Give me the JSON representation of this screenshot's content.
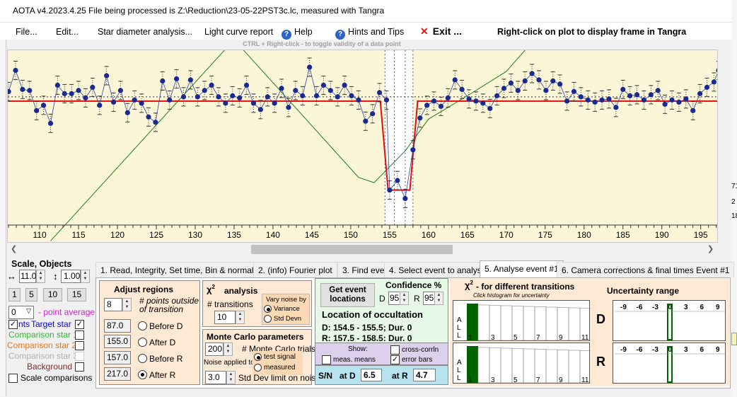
{
  "window": {
    "title": "AOTA v4.2023.4.25   File being processed is Z:\\Reduction\\23-05-22PST3c.lc, measured with Tangra"
  },
  "menu": {
    "file": "File...",
    "edit": "Edit...",
    "star_diameter": "Star diameter analysis...",
    "light_curve": "Light curve report",
    "help": "Help",
    "hints": "Hints and Tips",
    "exit": "Exit ...",
    "right_click_hint": "Right-click on plot to display frame in Tangra"
  },
  "plot": {
    "ctrl_hint": "CTRL + Right-click  -  to toggle validity of a data point"
  },
  "chart_data": {
    "type": "line",
    "x_ticks": [
      "110",
      "115",
      "120",
      "125",
      "130",
      "135",
      "140",
      "145",
      "150",
      "155",
      "160",
      "165",
      "170",
      "175",
      "180",
      "185",
      "190",
      "195"
    ],
    "xlim": [
      105.9,
      197.3
    ],
    "ylim": [
      -0.15,
      1.5
    ],
    "series": [
      {
        "values": [
          [
            106.0,
            1.11
          ],
          [
            106.9,
            1.31
          ],
          [
            107.8,
            1.13
          ],
          [
            108.7,
            1.12
          ],
          [
            109.6,
            0.93
          ],
          [
            110.5,
            0.98
          ],
          [
            111.4,
            0.81
          ],
          [
            112.3,
            1.17
          ],
          [
            113.2,
            1.09
          ],
          [
            114.1,
            1.09
          ],
          [
            115.0,
            1.12
          ],
          [
            115.9,
            1.05
          ],
          [
            116.8,
            1.15
          ],
          [
            117.7,
            0.98
          ],
          [
            118.6,
            1.26
          ],
          [
            119.5,
            1.01
          ],
          [
            120.4,
            1.12
          ],
          [
            121.3,
            0.91
          ],
          [
            122.2,
            1.03
          ],
          [
            123.1,
            1.0
          ],
          [
            124.0,
            0.87
          ],
          [
            124.9,
            0.82
          ],
          [
            125.8,
            1.21
          ],
          [
            126.7,
            1.03
          ],
          [
            127.6,
            1.23
          ],
          [
            128.5,
            1.06
          ],
          [
            129.4,
            1.22
          ],
          [
            130.3,
            1.06
          ],
          [
            131.2,
            1.12
          ],
          [
            132.1,
            1.17
          ],
          [
            133.0,
            1.06
          ],
          [
            133.9,
            1.0
          ],
          [
            134.8,
            1.07
          ],
          [
            135.7,
            1.05
          ],
          [
            136.6,
            1.17
          ],
          [
            137.5,
            1.0
          ],
          [
            138.4,
            0.94
          ],
          [
            139.3,
            1.06
          ],
          [
            140.2,
            1.0
          ],
          [
            141.1,
            1.14
          ],
          [
            142.0,
            0.96
          ],
          [
            142.9,
            1.12
          ],
          [
            143.8,
            1.07
          ],
          [
            144.7,
            1.34
          ],
          [
            145.6,
            1.07
          ],
          [
            146.5,
            1.17
          ],
          [
            147.4,
            1.12
          ],
          [
            148.3,
            1.06
          ],
          [
            149.2,
            1.17
          ],
          [
            150.1,
            1.07
          ],
          [
            151.0,
            1.03
          ],
          [
            151.9,
            0.83
          ],
          [
            152.8,
            0.9
          ],
          [
            153.7,
            1.1
          ],
          [
            154.6,
            1.03
          ],
          [
            155.0,
            0.18
          ],
          [
            156.0,
            0.27
          ],
          [
            157.0,
            0.1
          ],
          [
            158.0,
            0.56
          ],
          [
            158.9,
            0.86
          ],
          [
            159.8,
            0.98
          ],
          [
            160.7,
            1.02
          ],
          [
            161.6,
            0.97
          ],
          [
            162.5,
            1.05
          ],
          [
            163.4,
            1.22
          ],
          [
            164.3,
            1.13
          ],
          [
            165.2,
            1.04
          ],
          [
            166.1,
            1.02
          ],
          [
            167.0,
            1.0
          ],
          [
            167.9,
            0.95
          ],
          [
            168.8,
            1.07
          ],
          [
            169.7,
            1.14
          ],
          [
            170.6,
            1.19
          ],
          [
            171.5,
            1.12
          ],
          [
            172.4,
            1.21
          ],
          [
            173.3,
            1.28
          ],
          [
            174.2,
            1.22
          ],
          [
            175.1,
            1.12
          ],
          [
            176.0,
            1.21
          ],
          [
            176.9,
            1.18
          ],
          [
            177.8,
            1.02
          ],
          [
            178.7,
            1.11
          ],
          [
            179.6,
            1.06
          ],
          [
            180.5,
            1.03
          ],
          [
            181.4,
            1.01
          ],
          [
            182.3,
            1.03
          ],
          [
            183.2,
            1.04
          ],
          [
            184.1,
            0.96
          ],
          [
            185.0,
            1.13
          ],
          [
            185.9,
            1.07
          ],
          [
            186.8,
            1.08
          ],
          [
            187.7,
            1.03
          ],
          [
            188.6,
            1.08
          ],
          [
            189.5,
            1.12
          ],
          [
            190.4,
            0.99
          ],
          [
            191.3,
            1.03
          ],
          [
            192.2,
            1.01
          ],
          [
            193.1,
            1.04
          ],
          [
            194.0,
            0.93
          ],
          [
            194.9,
            1.09
          ],
          [
            195.8,
            1.15
          ],
          [
            196.7,
            1.2
          ],
          [
            197.3,
            1.31
          ]
        ]
      }
    ],
    "model": {
      "baseline": 1.02,
      "bottom": 0.18,
      "d": 154.8,
      "r": 157.6
    },
    "vertical_bounds": [
      154.4,
      155.6,
      157.0,
      158.0
    ]
  },
  "left": {
    "scale_objects": "Scale, Objects",
    "scale_x": "11.0",
    "scale_y": "1.00",
    "btns": [
      "1",
      "5",
      "10",
      "15"
    ],
    "avg_value": "0",
    "avg_label": "- point average",
    "target": "Target star",
    "cmp1": "Comparison star 1",
    "cmp2": "Comparison star 2",
    "cmp3": "Comparison star 3",
    "bg": "Background",
    "scale_cmp": "Scale comparisons",
    "target_prefix": "nts",
    "colors": {
      "target": "#0000ff",
      "cmp1": "#30b830",
      "cmp2": "#e07820",
      "cmp3": "#b0b0b0"
    }
  },
  "tabs": [
    "1.  Read, Integrity, Set time, Bin & normalise",
    "2. (info)  Fourier plot",
    "3. Find events",
    "4. Select event to analyse",
    "5. Analyse event #1",
    "6. Camera corrections & final times Event #1"
  ],
  "adjust": {
    "title": "Adjust regions",
    "pts": "8",
    "pts_label": "# points outside of transition",
    "before_d": "87.0",
    "after_d": "155.0",
    "before_r": "157.0",
    "after_r": "217.0",
    "lbl_before_d": "Before D",
    "lbl_after_d": "After D",
    "lbl_before_r": "Before R",
    "lbl_after_r": "After R"
  },
  "chi": {
    "title": "analysis",
    "transitions_label": "# transitions",
    "transitions": "10",
    "vary_label": "Vary noise by",
    "variance": "Variance",
    "stddev": "Std Devn"
  },
  "mc": {
    "title": "Monte Carlo parameters",
    "trials": "200",
    "trials_label": "# Monte Carlo trials",
    "noise_applied": "Noise applied to",
    "test_signal": "test signal",
    "measured": "measured",
    "stddev_limit": "3.0",
    "stddev_label": "Std Dev limit on noise"
  },
  "location": {
    "get_btn": "Get event locations",
    "confidence": "Confidence %",
    "d_conf": "95",
    "r_conf": "95",
    "d_lbl": "D",
    "r_lbl": "R",
    "heading": "Location of occultation",
    "d_line": "D: 154.5 - 155.5; Dur. 0",
    "r_line": "R: 157.5 - 158.5; Dur. 0",
    "show": "Show:",
    "meas_means": "meas. means",
    "cross_corr": "cross-corrln",
    "error_bars": "error bars",
    "sn": "S/N",
    "at_d": "at D",
    "sn_d": "6.5",
    "at_r": "at R",
    "sn_r": "4.7"
  },
  "chi2": {
    "title": "- for different transitions",
    "subtitle": "Click histogram for uncertainty",
    "all": [
      "A",
      "L",
      "L"
    ],
    "ticks": [
      "1",
      "3",
      "5",
      "7",
      "9",
      "11"
    ]
  },
  "uncertainty": {
    "title": "Uncertainty range",
    "ticks": [
      "-9",
      "-6",
      "-3",
      "0",
      "3",
      "6",
      "9"
    ],
    "d": "D",
    "r": "R"
  },
  "right_ticks": [
    "71",
    "2",
    "18"
  ]
}
